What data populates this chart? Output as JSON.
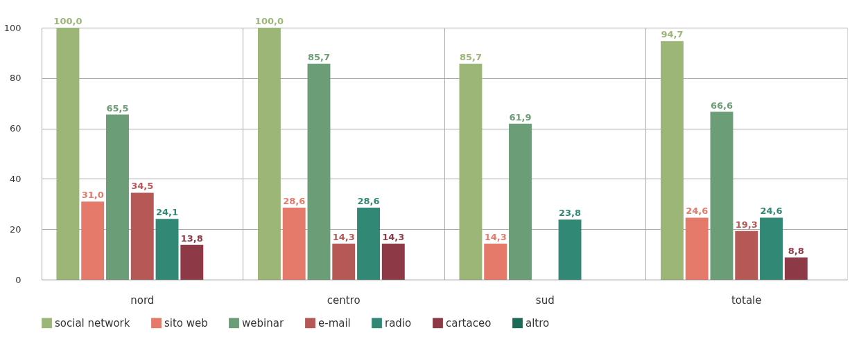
{
  "chart_data": {
    "type": "bar",
    "categories": [
      "nord",
      "centro",
      "sud",
      "totale"
    ],
    "series": [
      {
        "name": "social network",
        "color": "#9cb677",
        "values": [
          100.0,
          100.0,
          85.7,
          94.7
        ],
        "value_labels": [
          "100,0",
          "100,0",
          "85,7",
          "94,7"
        ]
      },
      {
        "name": "sito web",
        "color": "#e57a6a",
        "values": [
          31.0,
          28.6,
          14.3,
          24.6
        ],
        "value_labels": [
          "31,0",
          "28,6",
          "14,3",
          "24,6"
        ]
      },
      {
        "name": "webinar",
        "color": "#6b9d76",
        "values": [
          65.5,
          85.7,
          61.9,
          66.6
        ],
        "value_labels": [
          "65,5",
          "85,7",
          "61,9",
          "66,6"
        ]
      },
      {
        "name": "e-mail",
        "color": "#b65855",
        "values": [
          34.5,
          14.3,
          0,
          19.3
        ],
        "value_labels": [
          "34,5",
          "14,3",
          null,
          "19,3"
        ]
      },
      {
        "name": "radio",
        "color": "#318874",
        "values": [
          24.1,
          28.6,
          23.8,
          24.6
        ],
        "value_labels": [
          "24,1",
          "28,6",
          "23,8",
          "24,6"
        ]
      },
      {
        "name": "cartaceo",
        "color": "#8d3a46",
        "values": [
          13.8,
          14.3,
          0,
          8.8
        ],
        "value_labels": [
          "13,8",
          "14,3",
          null,
          "8,8"
        ]
      },
      {
        "name": "altro",
        "color": "#1c6b58",
        "values": [
          0,
          0,
          0,
          0
        ],
        "value_labels": [
          null,
          null,
          null,
          null
        ]
      }
    ],
    "ylim": [
      0,
      100
    ],
    "yticks": [
      0,
      20,
      40,
      60,
      80,
      100
    ],
    "grid": true,
    "legend": "bottom"
  }
}
